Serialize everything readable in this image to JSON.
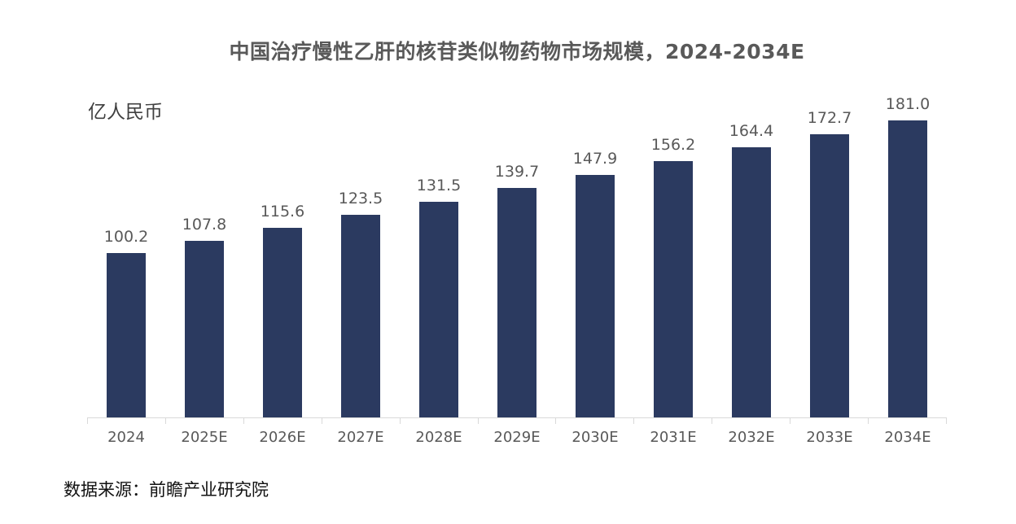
{
  "chart_data": {
    "type": "bar",
    "title": "中国治疗慢性乙肝的核苷类似物药物市场规模，2024-2034E",
    "ylabel": "亿人民币",
    "xlabel": "",
    "categories": [
      "2024",
      "2025E",
      "2026E",
      "2027E",
      "2028E",
      "2029E",
      "2030E",
      "2031E",
      "2032E",
      "2033E",
      "2034E"
    ],
    "values": [
      100.2,
      107.8,
      115.6,
      123.5,
      131.5,
      139.7,
      147.9,
      156.2,
      164.4,
      172.7,
      181.0
    ],
    "value_label_decimals": 1,
    "ylim": [
      0,
      190
    ],
    "grid": "off",
    "legend": "none",
    "data_labels": "above-bars"
  },
  "source": "数据来源：前瞻产业研究院",
  "colors": {
    "bar": "#2b3a60",
    "title_text": "#595959",
    "label_text": "#595959",
    "unit_text": "#404040",
    "axis_line": "#d9d9d9",
    "background": "#ffffff"
  }
}
